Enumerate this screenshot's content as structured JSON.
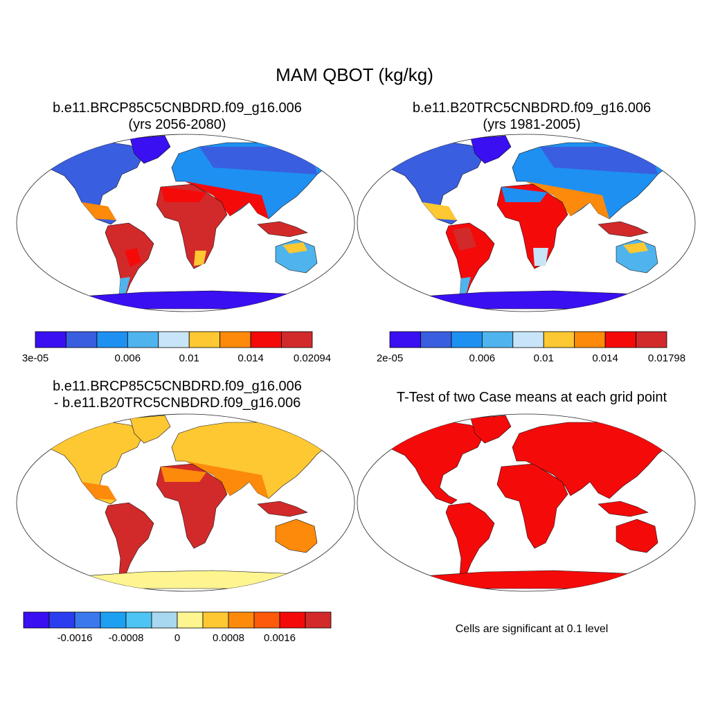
{
  "figure": {
    "title": "MAM QBOT (kg/kg)"
  },
  "panels": [
    {
      "title_line1": "b.e11.BRCP85C5CNBDRD.f09_g16.006",
      "title_line2": "(yrs 2056-2080)",
      "colorbar": {
        "colors": [
          "#3a0ff2",
          "#3a5ee0",
          "#1e90f2",
          "#4fb4ee",
          "#c8e4f8",
          "#fdc832",
          "#fd8a0a",
          "#f50a0a",
          "#d22a2a"
        ],
        "tick_labels": [
          {
            "text": "3e-05",
            "edge": 0
          },
          {
            "text": "0.006",
            "edge": 3
          },
          {
            "text": "0.01",
            "edge": 5
          },
          {
            "text": "0.014",
            "edge": 7
          },
          {
            "text": "0.02094",
            "edge": 9
          }
        ]
      }
    },
    {
      "title_line1": "b.e11.B20TRC5CNBDRD.f09_g16.006",
      "title_line2": "(yrs 1981-2005)",
      "colorbar": {
        "colors": [
          "#3a0ff2",
          "#3a5ee0",
          "#1e90f2",
          "#4fb4ee",
          "#c8e4f8",
          "#fdc832",
          "#fd8a0a",
          "#f50a0a",
          "#d22a2a"
        ],
        "tick_labels": [
          {
            "text": "2e-05",
            "edge": 0
          },
          {
            "text": "0.006",
            "edge": 3
          },
          {
            "text": "0.01",
            "edge": 5
          },
          {
            "text": "0.014",
            "edge": 7
          },
          {
            "text": "0.01798",
            "edge": 9
          }
        ]
      }
    },
    {
      "title_line1": "b.e11.BRCP85C5CNBDRD.f09_g16.006",
      "title_line2": "- b.e11.B20TRC5CNBDRD.f09_g16.006",
      "colorbar": {
        "colors": [
          "#3a0ff2",
          "#2a3ef0",
          "#3a78ee",
          "#1ea0f2",
          "#4ec4f4",
          "#a8d8f0",
          "#fff590",
          "#fdc832",
          "#fd8a0a",
          "#fd5a0a",
          "#f50a0a",
          "#d22a2a"
        ],
        "tick_labels": [
          {
            "text": "-0.0016",
            "edge": 2
          },
          {
            "text": "-0.0008",
            "edge": 4
          },
          {
            "text": "0",
            "edge": 6
          },
          {
            "text": "0.0008",
            "edge": 8
          },
          {
            "text": "0.0016",
            "edge": 10
          }
        ]
      }
    },
    {
      "title_line1": "T-Test of two Case means at each grid point",
      "note": "Cells are significant at 0.1 level"
    }
  ],
  "colors": {
    "land_panel_4": "#f50a0a",
    "antarctica_diff": "#fff590"
  }
}
